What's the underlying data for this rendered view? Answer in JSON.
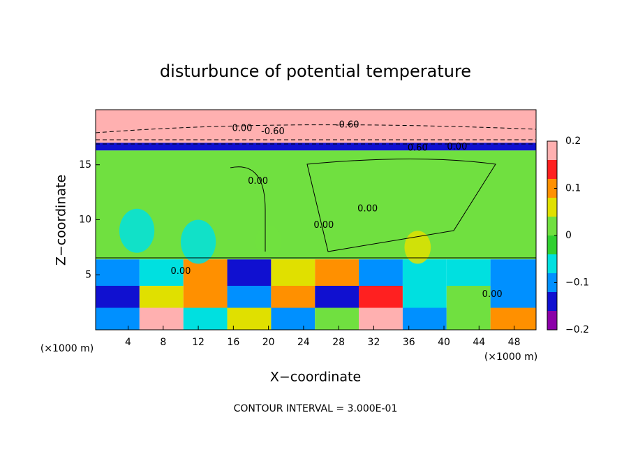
{
  "chart_data": {
    "type": "contourf",
    "title": "disturbunce of potential temperature",
    "xlabel": "X−coordinate",
    "ylabel": "Z−coordinate",
    "x_unit": "(×1000 m)",
    "x_unit_right": "(×1000 m)",
    "footer": "CONTOUR INTERVAL = 3.000E-01",
    "xlim": [
      0.3,
      50.5
    ],
    "ylim": [
      0,
      20
    ],
    "xticks": [
      4,
      8,
      12,
      16,
      20,
      24,
      28,
      32,
      36,
      40,
      44,
      48
    ],
    "yticks": [
      5,
      10,
      15
    ],
    "clim": [
      -0.2,
      0.2
    ],
    "cticks": [
      {
        "value": -0.2,
        "label": "−0.2"
      },
      {
        "value": -0.1,
        "label": "−0.1"
      },
      0,
      0.1,
      0.2
    ],
    "colormap": [
      "#8b00a8",
      "#1010d0",
      "#0090ff",
      "#00e0e0",
      "#30d030",
      "#70e040",
      "#e0e000",
      "#ff9000",
      "#ff2020",
      "#ffb0b0"
    ],
    "bands": [
      {
        "z": [
          6.4,
          16.3
        ],
        "value": 0.01
      },
      {
        "z": [
          16.3,
          17.0
        ],
        "value": -0.15
      },
      {
        "z": [
          17.0,
          20
        ],
        "value": 0.2
      }
    ],
    "blobs": [
      {
        "x": 12,
        "z": 8,
        "r": 2,
        "value": -0.07
      },
      {
        "x": 5,
        "z": 9,
        "r": 2,
        "value": -0.05
      },
      {
        "x": 37,
        "z": 7.5,
        "r": 1.5,
        "value": 0.06
      },
      {
        "x": 20,
        "z": 8,
        "r": 1.5,
        "value": 0.03
      }
    ],
    "field": {
      "x_edges": [
        0.3,
        5.3,
        10.3,
        15.3,
        20.3,
        25.3,
        30.3,
        35.3,
        40.3,
        45.3,
        50.5
      ],
      "z_edges": [
        0,
        2,
        4,
        6.4
      ],
      "values": [
        [
          -0.12,
          0.2,
          -0.05,
          0.05,
          -0.1,
          0.02,
          0.2,
          -0.1,
          0.03,
          0.1
        ],
        [
          -0.15,
          0.05,
          0.1,
          -0.12,
          0.08,
          -0.14,
          0.15,
          -0.08,
          0.02,
          -0.1
        ],
        [
          -0.1,
          -0.05,
          0.1,
          -0.15,
          0.05,
          0.1,
          -0.12,
          -0.08,
          -0.05,
          -0.12
        ]
      ]
    },
    "contour_labels": [
      {
        "x": 17,
        "z": 18.3,
        "text": "0.00"
      },
      {
        "x": 20.5,
        "z": 18,
        "text": "-0.60"
      },
      {
        "x": 29,
        "z": 18.6,
        "text": "-0.60"
      },
      {
        "x": 37,
        "z": 16.5,
        "text": "0.60"
      },
      {
        "x": 41.5,
        "z": 16.6,
        "text": "0.00"
      },
      {
        "x": 18.8,
        "z": 13.5,
        "text": "0.00"
      },
      {
        "x": 26.3,
        "z": 9.5,
        "text": "0.00"
      },
      {
        "x": 31.3,
        "z": 11,
        "text": "0.00"
      },
      {
        "x": 10,
        "z": 5.3,
        "text": "0.00"
      },
      {
        "x": 45.5,
        "z": 3.2,
        "text": "0.00"
      }
    ]
  }
}
